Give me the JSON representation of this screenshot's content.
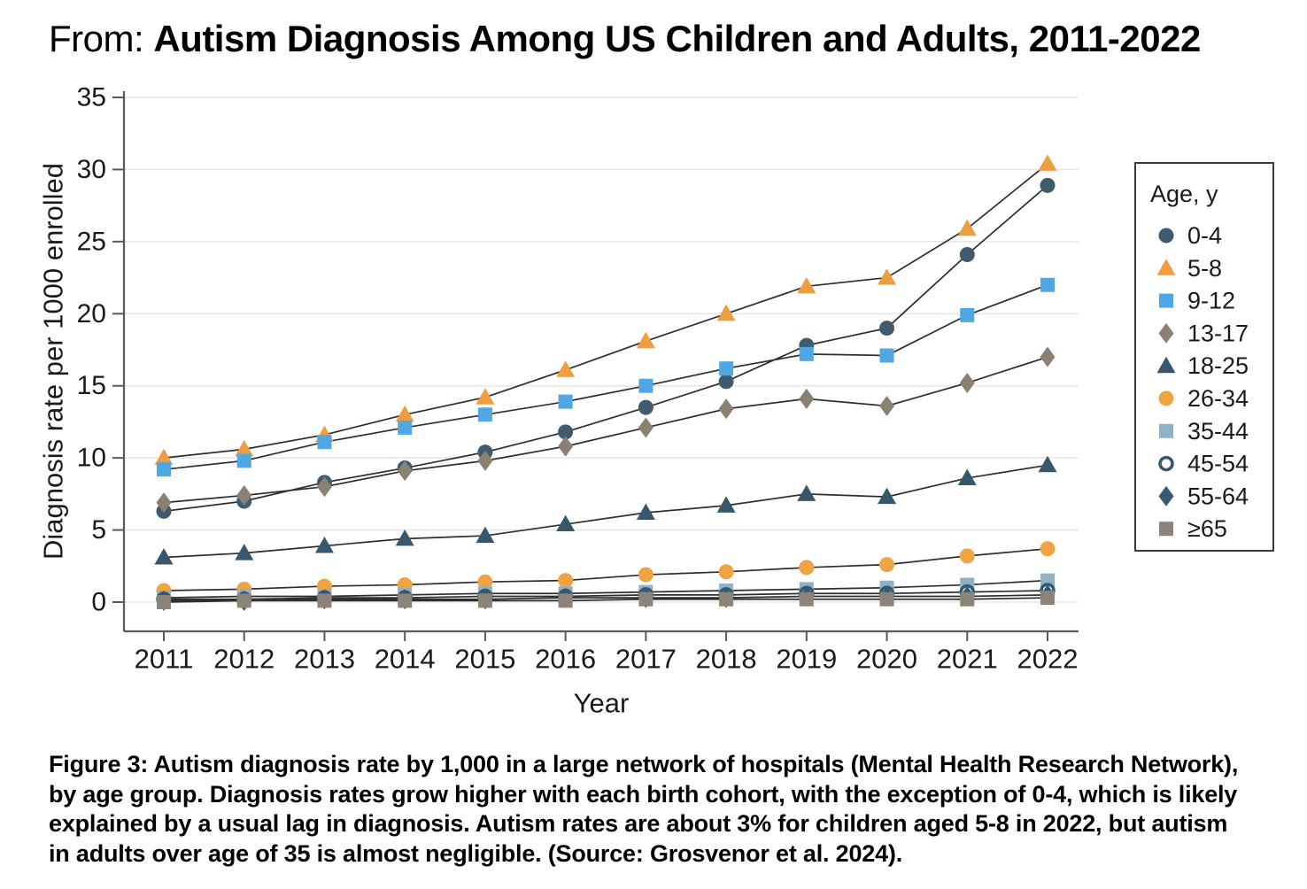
{
  "title": {
    "prefix": "From: ",
    "main": "Autism Diagnosis Among US Children and Adults, 2011-2022"
  },
  "chart_data": {
    "type": "line",
    "xlabel": "Year",
    "ylabel": "Diagnosis rate per 1000 enrolled",
    "x": [
      2011,
      2012,
      2013,
      2014,
      2015,
      2016,
      2017,
      2018,
      2019,
      2020,
      2021,
      2022
    ],
    "ylim": [
      0,
      35
    ],
    "yticks": [
      0,
      5,
      10,
      15,
      20,
      25,
      30,
      35
    ],
    "grid": "horizontal",
    "legend_title": "Age, y",
    "legend_position": "right",
    "line_color": "#2E2E2E",
    "series": [
      {
        "name": "0-4",
        "marker": "circle",
        "color": "#3E5B70",
        "values": [
          6.3,
          7.0,
          8.3,
          9.3,
          10.4,
          11.8,
          13.5,
          15.3,
          17.8,
          19.0,
          24.1,
          28.9
        ]
      },
      {
        "name": "5-8",
        "marker": "triangle",
        "color": "#F09D3F",
        "values": [
          10.0,
          10.6,
          11.6,
          13.0,
          14.2,
          16.1,
          18.1,
          20.0,
          21.9,
          22.5,
          25.9,
          30.4
        ]
      },
      {
        "name": "9-12",
        "marker": "square",
        "color": "#4FA8E4",
        "values": [
          9.2,
          9.8,
          11.1,
          12.1,
          13.0,
          13.9,
          15.0,
          16.2,
          17.2,
          17.1,
          19.9,
          22.0
        ]
      },
      {
        "name": "13-17",
        "marker": "diamond",
        "color": "#8A8171",
        "values": [
          6.9,
          7.4,
          8.0,
          9.1,
          9.8,
          10.8,
          12.1,
          13.4,
          14.1,
          13.6,
          15.2,
          17.0
        ]
      },
      {
        "name": "18-25",
        "marker": "triangle",
        "color": "#36576C",
        "values": [
          3.1,
          3.4,
          3.9,
          4.4,
          4.6,
          5.4,
          6.2,
          6.7,
          7.5,
          7.3,
          8.6,
          9.5
        ]
      },
      {
        "name": "26-34",
        "marker": "circle",
        "color": "#F0A343",
        "values": [
          0.8,
          0.9,
          1.1,
          1.2,
          1.4,
          1.5,
          1.9,
          2.1,
          2.4,
          2.6,
          3.2,
          3.7
        ]
      },
      {
        "name": "35-44",
        "marker": "square",
        "color": "#90B2C6",
        "values": [
          0.3,
          0.4,
          0.4,
          0.5,
          0.6,
          0.6,
          0.7,
          0.8,
          0.9,
          1.0,
          1.2,
          1.5
        ]
      },
      {
        "name": "45-54",
        "marker": "circle-open",
        "color": "#35596E",
        "values": [
          0.2,
          0.2,
          0.3,
          0.3,
          0.4,
          0.4,
          0.5,
          0.5,
          0.6,
          0.6,
          0.7,
          0.8
        ]
      },
      {
        "name": "55-64",
        "marker": "diamond",
        "color": "#35596E",
        "values": [
          0.1,
          0.1,
          0.2,
          0.2,
          0.2,
          0.3,
          0.3,
          0.3,
          0.4,
          0.4,
          0.4,
          0.5
        ]
      },
      {
        "name": "≥65",
        "marker": "square",
        "color": "#8C8476",
        "values": [
          0.0,
          0.1,
          0.1,
          0.1,
          0.1,
          0.1,
          0.2,
          0.2,
          0.2,
          0.2,
          0.2,
          0.3
        ]
      }
    ]
  },
  "caption": {
    "lines": [
      "Figure 3: Autism diagnosis rate by 1,000 in a large network of hospitals (Mental Health Research Network),",
      "by age group. Diagnosis rates grow higher with each birth cohort, with the exception of 0-4, which is likely",
      "explained by a usual lag in diagnosis. Autism rates are about 3% for children aged 5-8 in 2022, but autism",
      "in adults over age of 35 is almost negligible. (Source: Grosvenor et al. 2024)."
    ]
  }
}
